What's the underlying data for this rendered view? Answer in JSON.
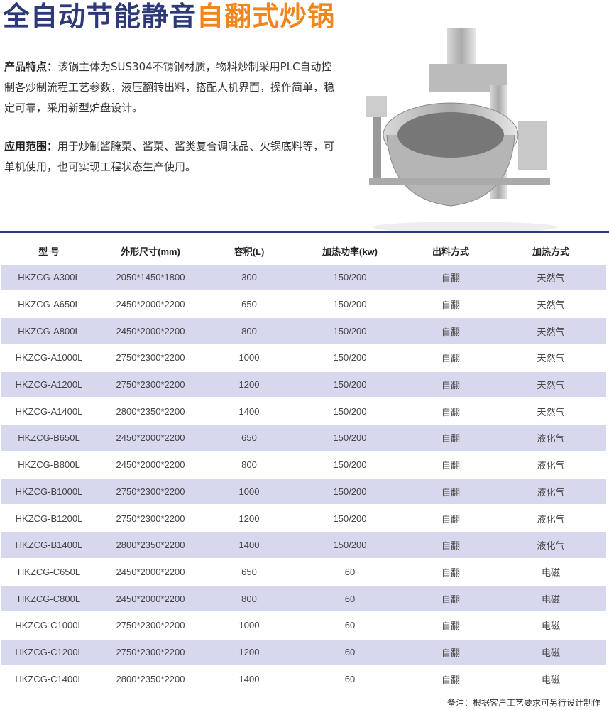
{
  "title": {
    "part1": "全自动节能静音",
    "part2": "自翻式炒锅",
    "accent": "#f0861e",
    "primary": "#2e3a78"
  },
  "features": {
    "label": "产品特点：",
    "text": "该锅主体为SUS304不锈钢材质，物料炒制采用PLC自动控制各炒制流程工艺参数，液压翻转出料，搭配人机界面，操作简单，稳定可靠，采用新型炉盘设计。"
  },
  "application": {
    "label": "应用范围：",
    "text": "用于炒制酱腌菜、酱菜、酱类复合调味品、火锅底料等，可单机使用，也可实现工程状态生产使用。"
  },
  "table": {
    "headers": [
      "型 号",
      "外形尺寸(mm)",
      "容积(L)",
      "加热功率(kw)",
      "出料方式",
      "加热方式"
    ],
    "rows": [
      [
        "HKZCG-A300L",
        "2050*1450*1800",
        "300",
        "150/200",
        "自翻",
        "天然气"
      ],
      [
        "HKZCG-A650L",
        "2450*2000*2200",
        "650",
        "150/200",
        "自翻",
        "天然气"
      ],
      [
        "HKZCG-A800L",
        "2450*2000*2200",
        "800",
        "150/200",
        "自翻",
        "天然气"
      ],
      [
        "HKZCG-A1000L",
        "2750*2300*2200",
        "1000",
        "150/200",
        "自翻",
        "天然气"
      ],
      [
        "HKZCG-A1200L",
        "2750*2300*2200",
        "1200",
        "150/200",
        "自翻",
        "天然气"
      ],
      [
        "HKZCG-A1400L",
        "2800*2350*2200",
        "1400",
        "150/200",
        "自翻",
        "天然气"
      ],
      [
        "HKZCG-B650L",
        "2450*2000*2200",
        "650",
        "150/200",
        "自翻",
        "液化气"
      ],
      [
        "HKZCG-B800L",
        "2450*2000*2200",
        "800",
        "150/200",
        "自翻",
        "液化气"
      ],
      [
        "HKZCG-B1000L",
        "2750*2300*2200",
        "1000",
        "150/200",
        "自翻",
        "液化气"
      ],
      [
        "HKZCG-B1200L",
        "2750*2300*2200",
        "1200",
        "150/200",
        "自翻",
        "液化气"
      ],
      [
        "HKZCG-B1400L",
        "2800*2350*2200",
        "1400",
        "150/200",
        "自翻",
        "液化气"
      ],
      [
        "HKZCG-C650L",
        "2450*2000*2200",
        "650",
        "60",
        "自翻",
        "电磁"
      ],
      [
        "HKZCG-C800L",
        "2450*2000*2200",
        "800",
        "60",
        "自翻",
        "电磁"
      ],
      [
        "HKZCG-C1000L",
        "2750*2300*2200",
        "1000",
        "60",
        "自翻",
        "电磁"
      ],
      [
        "HKZCG-C1200L",
        "2750*2300*2200",
        "1200",
        "60",
        "自翻",
        "电磁"
      ],
      [
        "HKZCG-C1400L",
        "2800*2350*2200",
        "1400",
        "60",
        "自翻",
        "电磁"
      ]
    ]
  },
  "note": "备注：根据客户工艺要求可另行设计制作"
}
